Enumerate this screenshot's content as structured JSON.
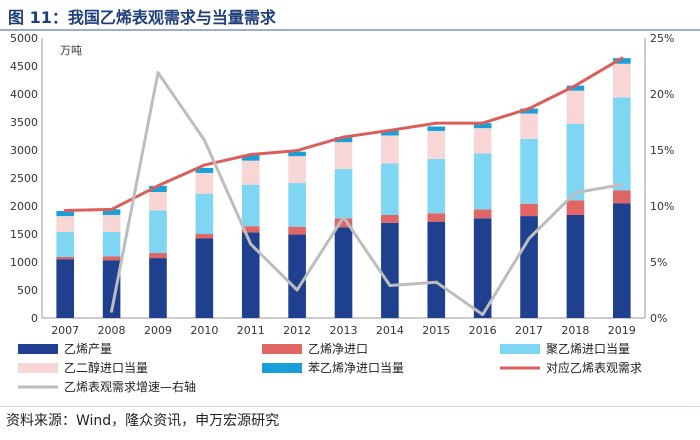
{
  "header": {
    "title": "图 11：我国乙烯表观需求与当量需求"
  },
  "footer": {
    "source": "资料来源：Wind，隆众资讯，申万宏源研究"
  },
  "chart_data": {
    "type": "bar",
    "stacked": true,
    "categories": [
      "2007",
      "2008",
      "2009",
      "2010",
      "2011",
      "2012",
      "2013",
      "2014",
      "2015",
      "2016",
      "2017",
      "2018",
      "2019"
    ],
    "y_unit_label": "万吨",
    "ylim": [
      0,
      5000
    ],
    "y_ticks": [
      0,
      500,
      1000,
      1500,
      2000,
      2500,
      3000,
      3500,
      4000,
      4500,
      5000
    ],
    "y2lim": [
      0,
      25
    ],
    "y2_ticks": [
      "0%",
      "5%",
      "10%",
      "15%",
      "20%",
      "25%"
    ],
    "grid": false,
    "legend_position": "bottom",
    "series": [
      {
        "name": "乙烯产量",
        "kind": "bar",
        "color": "#1f3f8f",
        "values": [
          1050,
          1030,
          1070,
          1420,
          1530,
          1490,
          1620,
          1700,
          1720,
          1780,
          1820,
          1840,
          2050
        ]
      },
      {
        "name": "乙烯净进口",
        "kind": "bar",
        "color": "#e06666",
        "values": [
          40,
          70,
          90,
          80,
          110,
          140,
          160,
          140,
          150,
          160,
          220,
          260,
          230
        ]
      },
      {
        "name": "聚乙烯进口当量",
        "kind": "bar",
        "color": "#7fd6f2",
        "values": [
          450,
          440,
          760,
          720,
          740,
          780,
          880,
          920,
          970,
          1000,
          1160,
          1370,
          1660
        ]
      },
      {
        "name": "乙二醇进口当量",
        "kind": "bar",
        "color": "#f8d6d6",
        "values": [
          280,
          300,
          330,
          370,
          430,
          480,
          480,
          500,
          500,
          450,
          450,
          590,
          600
        ]
      },
      {
        "name": "苯乙烯净进口当量",
        "kind": "bar",
        "color": "#1aa0d8",
        "values": [
          90,
          100,
          110,
          90,
          100,
          80,
          90,
          90,
          80,
          90,
          90,
          90,
          100
        ]
      },
      {
        "name": "对应乙烯表观需求",
        "kind": "line",
        "axis": "left",
        "color": "#d9605a",
        "values": [
          1920,
          1940,
          2360,
          2730,
          2920,
          2990,
          3230,
          3350,
          3480,
          3480,
          3740,
          4150,
          4640
        ]
      },
      {
        "name": "乙烯表观需求增速—右轴",
        "kind": "line",
        "axis": "right",
        "color": "#bdbdbd",
        "values": [
          null,
          0.6,
          21.9,
          15.9,
          6.6,
          2.5,
          9.0,
          2.9,
          3.2,
          0.3,
          7.1,
          11.2,
          11.9
        ]
      }
    ]
  }
}
